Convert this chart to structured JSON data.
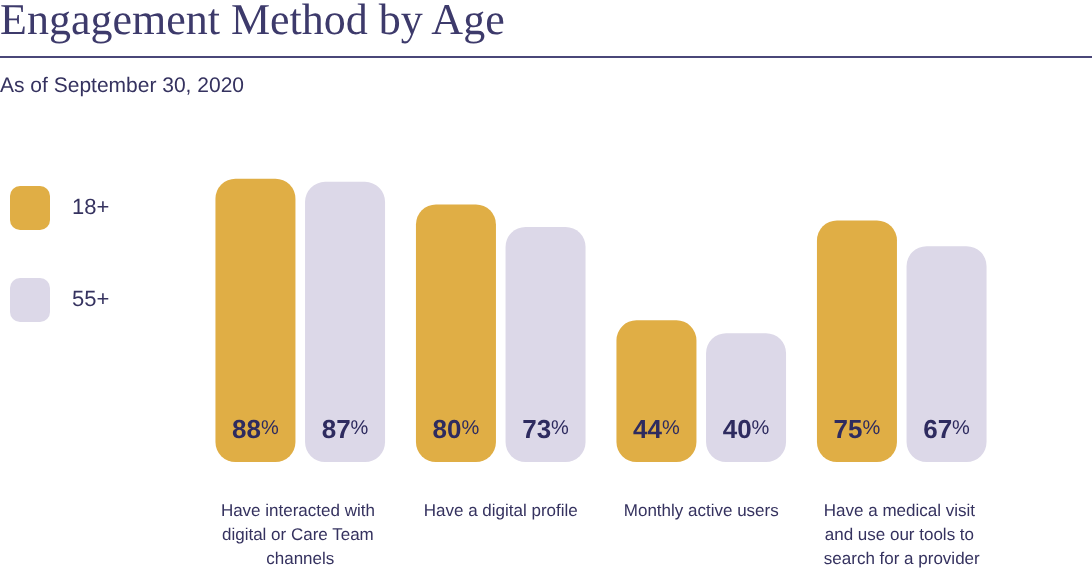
{
  "chart_data": {
    "type": "bar",
    "title": "Engagement Method by Age",
    "subtitle": "As of September 30, 2020",
    "categories": [
      "Have interacted with digital or Care Team channels",
      "Have a digital profile",
      "Monthly active users",
      "Have a medical visit and use our tools to search for a provider"
    ],
    "series": [
      {
        "name": "18+",
        "color": "#e0ae45",
        "values": [
          88,
          80,
          44,
          75
        ],
        "value_labels": [
          "88%",
          "80%",
          "44%",
          "75%"
        ]
      },
      {
        "name": "55+",
        "color": "#dcd8e8",
        "values": [
          87,
          73,
          40,
          67
        ],
        "value_labels": [
          "87%",
          "73%",
          "40%",
          "67%"
        ]
      }
    ],
    "legend": "left"
  }
}
